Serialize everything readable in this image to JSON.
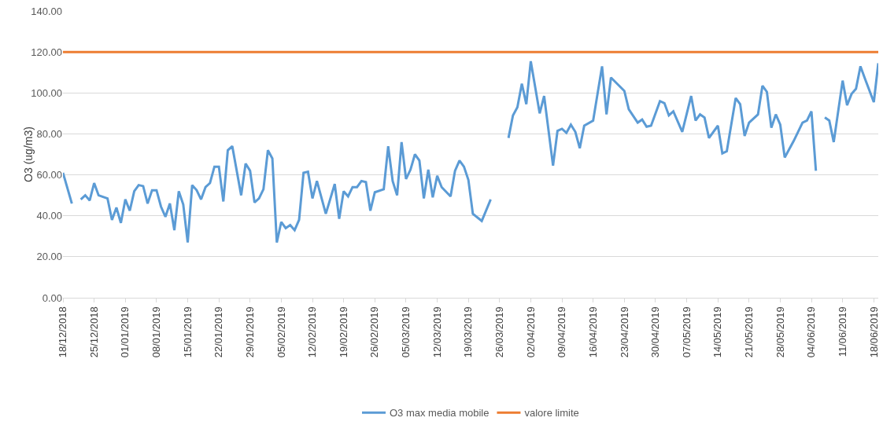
{
  "chart_data": {
    "type": "line",
    "ylabel": "O3 (ug/m3)",
    "x": [
      "2018-12-18",
      "2018-12-20",
      "2018-12-21",
      "2018-12-22",
      "2018-12-23",
      "2018-12-24",
      "2018-12-25",
      "2018-12-26",
      "2018-12-28",
      "2018-12-29",
      "2018-12-30",
      "2018-12-31",
      "2019-01-01",
      "2019-01-02",
      "2019-01-03",
      "2019-01-04",
      "2019-01-05",
      "2019-01-06",
      "2019-01-07",
      "2019-01-08",
      "2019-01-09",
      "2019-01-10",
      "2019-01-11",
      "2019-01-12",
      "2019-01-13",
      "2019-01-14",
      "2019-01-15",
      "2019-01-16",
      "2019-01-17",
      "2019-01-18",
      "2019-01-19",
      "2019-01-20",
      "2019-01-21",
      "2019-01-22",
      "2019-01-23",
      "2019-01-24",
      "2019-01-25",
      "2019-01-27",
      "2019-01-28",
      "2019-01-29",
      "2019-01-30",
      "2019-01-31",
      "2019-02-01",
      "2019-02-02",
      "2019-02-03",
      "2019-02-04",
      "2019-02-05",
      "2019-02-06",
      "2019-02-07",
      "2019-02-08",
      "2019-02-09",
      "2019-02-10",
      "2019-02-11",
      "2019-02-12",
      "2019-02-13",
      "2019-02-15",
      "2019-02-17",
      "2019-02-18",
      "2019-02-19",
      "2019-02-20",
      "2019-02-21",
      "2019-02-22",
      "2019-02-23",
      "2019-02-24",
      "2019-02-25",
      "2019-02-26",
      "2019-02-28",
      "2019-03-01",
      "2019-03-02",
      "2019-03-03",
      "2019-03-04",
      "2019-03-05",
      "2019-03-06",
      "2019-03-07",
      "2019-03-08",
      "2019-03-09",
      "2019-03-10",
      "2019-03-11",
      "2019-03-12",
      "2019-03-13",
      "2019-03-15",
      "2019-03-16",
      "2019-03-17",
      "2019-03-18",
      "2019-03-19",
      "2019-03-20",
      "2019-03-22",
      "2019-03-24",
      "2019-03-26",
      "2019-03-28",
      "2019-03-29",
      "2019-03-30",
      "2019-03-31",
      "2019-04-01",
      "2019-04-02",
      "2019-04-04",
      "2019-04-05",
      "2019-04-07",
      "2019-04-08",
      "2019-04-09",
      "2019-04-10",
      "2019-04-11",
      "2019-04-12",
      "2019-04-13",
      "2019-04-14",
      "2019-04-16",
      "2019-04-18",
      "2019-04-19",
      "2019-04-20",
      "2019-04-23",
      "2019-04-24",
      "2019-04-26",
      "2019-04-27",
      "2019-04-28",
      "2019-04-29",
      "2019-05-01",
      "2019-05-02",
      "2019-05-03",
      "2019-05-04",
      "2019-05-06",
      "2019-05-08",
      "2019-05-09",
      "2019-05-10",
      "2019-05-11",
      "2019-05-12",
      "2019-05-14",
      "2019-05-15",
      "2019-05-16",
      "2019-05-18",
      "2019-05-19",
      "2019-05-20",
      "2019-05-21",
      "2019-05-23",
      "2019-05-24",
      "2019-05-25",
      "2019-05-26",
      "2019-05-27",
      "2019-05-28",
      "2019-05-29",
      "2019-05-31",
      "2019-06-01",
      "2019-06-02",
      "2019-06-03",
      "2019-06-04",
      "2019-06-05",
      "2019-06-06",
      "2019-06-07",
      "2019-06-08",
      "2019-06-09",
      "2019-06-11",
      "2019-06-12",
      "2019-06-13",
      "2019-06-14",
      "2019-06-15",
      "2019-06-16",
      "2019-06-18",
      "2019-06-19"
    ],
    "series": [
      {
        "name": "O3 max media mobile",
        "color": "#5b9bd5",
        "values": [
          61,
          46,
          null,
          48,
          50,
          47.5,
          56,
          50,
          48.5,
          38,
          44,
          36.5,
          48,
          42.5,
          52,
          55,
          54.5,
          46,
          52.5,
          52.5,
          44.5,
          39.5,
          46,
          33,
          52,
          45.5,
          27,
          55,
          52.5,
          48,
          54,
          56,
          64,
          64,
          47,
          72,
          74,
          50,
          65.5,
          62,
          46.5,
          48.5,
          53,
          72,
          68,
          27,
          37,
          34,
          35.5,
          33,
          38,
          61,
          61.5,
          48.5,
          57,
          41,
          55.5,
          38.5,
          52,
          49.5,
          54,
          54,
          57,
          56.5,
          42.5,
          51.5,
          53,
          74,
          57,
          50,
          76,
          58,
          62.5,
          70,
          67,
          48.5,
          62.5,
          49,
          59.5,
          54,
          49.5,
          62,
          67,
          64,
          57.5,
          41,
          37.5,
          48,
          null,
          78,
          89,
          93,
          104.5,
          94.5,
          115.5,
          90,
          98.5,
          64.5,
          81.5,
          82.5,
          80.5,
          84.5,
          81,
          73,
          84,
          86.5,
          113,
          89.5,
          107.5,
          101,
          92,
          85.5,
          87,
          83.5,
          84,
          96,
          95,
          89,
          91,
          81,
          98.5,
          86.5,
          89.5,
          88,
          78,
          84,
          70.5,
          71.5,
          97.5,
          94.5,
          79,
          85.5,
          89.5,
          103.5,
          100.5,
          83,
          89.5,
          84.5,
          68.5,
          76.5,
          81,
          85.5,
          86.5,
          91,
          62,
          null,
          88,
          86.5,
          76,
          106,
          94,
          99.5,
          102,
          113,
          107,
          95.5,
          114.5
        ]
      }
    ],
    "ref_lines": [
      {
        "axis": "y",
        "value": 120,
        "label": "valore limite",
        "color": "#ed7d31",
        "line_style": "solid"
      }
    ],
    "xlim": [
      "2018-12-18",
      "2019-06-19"
    ],
    "xticks": [
      {
        "value": "2018-12-18",
        "label": "18/12/2018"
      },
      {
        "value": "2018-12-25",
        "label": "25/12/2018"
      },
      {
        "value": "2019-01-01",
        "label": "01/01/2019"
      },
      {
        "value": "2019-01-08",
        "label": "08/01/2019"
      },
      {
        "value": "2019-01-15",
        "label": "15/01/2019"
      },
      {
        "value": "2019-01-22",
        "label": "22/01/2019"
      },
      {
        "value": "2019-01-29",
        "label": "29/01/2019"
      },
      {
        "value": "2019-02-05",
        "label": "05/02/2019"
      },
      {
        "value": "2019-02-12",
        "label": "12/02/2019"
      },
      {
        "value": "2019-02-19",
        "label": "19/02/2019"
      },
      {
        "value": "2019-02-26",
        "label": "26/02/2019"
      },
      {
        "value": "2019-03-05",
        "label": "05/03/2019"
      },
      {
        "value": "2019-03-12",
        "label": "12/03/2019"
      },
      {
        "value": "2019-03-19",
        "label": "19/03/2019"
      },
      {
        "value": "2019-03-26",
        "label": "26/03/2019"
      },
      {
        "value": "2019-04-02",
        "label": "02/04/2019"
      },
      {
        "value": "2019-04-09",
        "label": "09/04/2019"
      },
      {
        "value": "2019-04-16",
        "label": "16/04/2019"
      },
      {
        "value": "2019-04-23",
        "label": "23/04/2019"
      },
      {
        "value": "2019-04-30",
        "label": "30/04/2019"
      },
      {
        "value": "2019-05-07",
        "label": "07/05/2019"
      },
      {
        "value": "2019-05-14",
        "label": "14/05/2019"
      },
      {
        "value": "2019-05-21",
        "label": "21/05/2019"
      },
      {
        "value": "2019-05-28",
        "label": "28/05/2019"
      },
      {
        "value": "2019-06-04",
        "label": "04/06/2019"
      },
      {
        "value": "2019-06-11",
        "label": "11/06/2019"
      },
      {
        "value": "2019-06-18",
        "label": "18/06/2019"
      }
    ],
    "ylim": [
      0,
      140
    ],
    "yticks": [
      {
        "value": 0,
        "label": "0.00"
      },
      {
        "value": 20,
        "label": "20.00"
      },
      {
        "value": 40,
        "label": "40.00"
      },
      {
        "value": 60,
        "label": "60.00"
      },
      {
        "value": 80,
        "label": "80.00"
      },
      {
        "value": 100,
        "label": "100.00"
      },
      {
        "value": 120,
        "label": "120.00"
      },
      {
        "value": 140,
        "label": "140.00"
      }
    ],
    "grid": "y",
    "legend": "bottom",
    "marker": "none",
    "line_style": "solid"
  }
}
